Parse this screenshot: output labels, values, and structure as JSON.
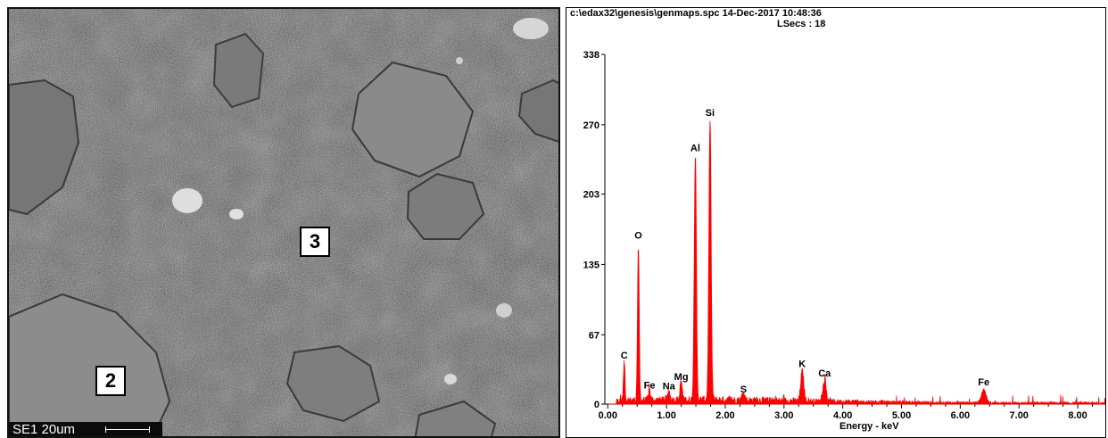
{
  "sem_image": {
    "particle_labels": [
      {
        "id": "2"
      },
      {
        "id": "3"
      }
    ],
    "scale_bar_text": "SE1 20um"
  },
  "spectrum_header": {
    "line1": "c:\\edax32\\genesis\\genmaps.spc  14-Dec-2017 10:48:36",
    "line2": "LSecs : 18"
  },
  "chart_data": {
    "type": "line",
    "title": "",
    "xlabel": "Energy - keV",
    "ylabel": "",
    "xlim": [
      -0.05,
      8.5
    ],
    "ylim": [
      0,
      338
    ],
    "x_ticks": [
      0.0,
      1.0,
      2.0,
      3.0,
      4.0,
      5.0,
      6.0,
      7.0,
      8.0
    ],
    "x_tick_labels": [
      "0.00",
      "1.00",
      "2.00",
      "3.00",
      "4.00",
      "5.00",
      "6.00",
      "7.00",
      "8.00"
    ],
    "y_ticks": [
      0,
      67,
      135,
      203,
      270,
      338
    ],
    "y_tick_labels": [
      "0",
      "67",
      "135",
      "203",
      "270",
      "338"
    ],
    "series_color": "#ff0000",
    "peaks": [
      {
        "element": "C",
        "energy": 0.28,
        "counts": 37
      },
      {
        "element": "O",
        "energy": 0.52,
        "counts": 148
      },
      {
        "element": "Fe",
        "energy": 0.71,
        "counts": 10
      },
      {
        "element": "Na",
        "energy": 1.04,
        "counts": 9
      },
      {
        "element": "Mg",
        "energy": 1.25,
        "counts": 18
      },
      {
        "element": "Al",
        "energy": 1.49,
        "counts": 236
      },
      {
        "element": "Si",
        "energy": 1.74,
        "counts": 270
      },
      {
        "element": "S",
        "energy": 2.31,
        "counts": 6
      },
      {
        "element": "K",
        "energy": 3.31,
        "counts": 29
      },
      {
        "element": "Ca",
        "energy": 3.69,
        "counts": 20
      },
      {
        "element": "Fe",
        "energy": 6.4,
        "counts": 13
      }
    ],
    "grid": false,
    "legend": "none"
  }
}
